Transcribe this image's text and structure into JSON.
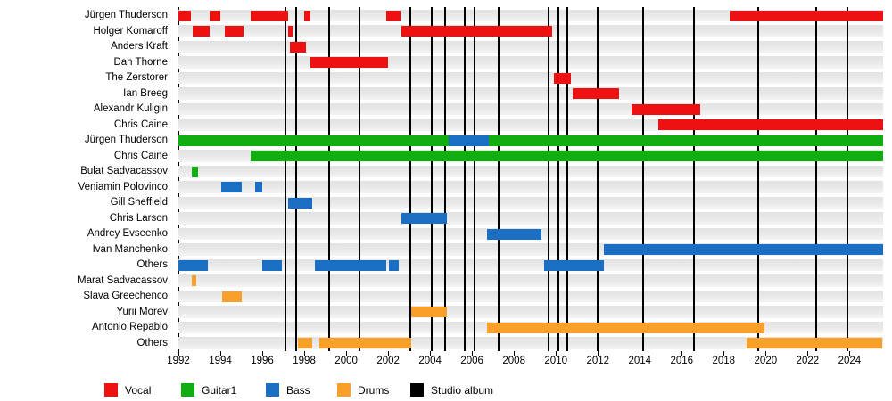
{
  "chart_data": {
    "type": "bar",
    "subtype": "band-members-timeline",
    "title": "",
    "xlabel": "",
    "ylabel": "",
    "grid": false,
    "legend_position": "bottom",
    "x_axis": {
      "min": 1992,
      "max": 2025.6,
      "tick_interval": 2,
      "ticks": [
        "1992",
        "1994",
        "1996",
        "1998",
        "2000",
        "2002",
        "2004",
        "2006",
        "2008",
        "2010",
        "2012",
        "2014",
        "2016",
        "2018",
        "2020",
        "2022",
        "2024"
      ]
    },
    "legend": [
      {
        "label": "Vocal",
        "color": "#ee1111"
      },
      {
        "label": "Guitar1",
        "color": "#11ad11"
      },
      {
        "label": "Bass",
        "color": "#1a6fc4"
      },
      {
        "label": "Drums",
        "color": "#f9a02b"
      },
      {
        "label": "Studio album",
        "color": "#000000"
      }
    ],
    "album_release_years": [
      1997.1,
      1997.6,
      1999.2,
      2000.65,
      2003.05,
      2004.1,
      2004.7,
      2005.65,
      2006.1,
      2007.25,
      2009.65,
      2010.1,
      2010.55,
      2012.0,
      2014.15,
      2016.6,
      2019.65,
      2022.4,
      2023.9
    ],
    "rows": [
      {
        "name": "Jürgen Thuderson",
        "role": "Vocal",
        "bars": [
          {
            "start": 1992.0,
            "end": 1992.6
          },
          {
            "start": 1993.5,
            "end": 1994.0
          },
          {
            "start": 1995.45,
            "end": 1997.25
          },
          {
            "start": 1998.0,
            "end": 1998.3
          },
          {
            "start": 2001.9,
            "end": 2002.6
          },
          {
            "start": 2018.3,
            "end": 2025.6
          }
        ]
      },
      {
        "name": "Holger Komaroff",
        "role": "Vocal",
        "bars": [
          {
            "start": 1992.7,
            "end": 1993.5
          },
          {
            "start": 1994.2,
            "end": 1995.1
          },
          {
            "start": 1997.25,
            "end": 1997.45
          },
          {
            "start": 2002.65,
            "end": 2009.8
          }
        ]
      },
      {
        "name": "Anders Kraft",
        "role": "Vocal",
        "bars": [
          {
            "start": 1997.3,
            "end": 1998.1
          }
        ]
      },
      {
        "name": "Dan Thorne",
        "role": "Vocal",
        "bars": [
          {
            "start": 1998.3,
            "end": 2002.0
          }
        ]
      },
      {
        "name": "The Zerstorer",
        "role": "Vocal",
        "bars": [
          {
            "start": 2009.9,
            "end": 2010.7
          }
        ]
      },
      {
        "name": "Ian Breeg",
        "role": "Vocal",
        "bars": [
          {
            "start": 2010.8,
            "end": 2013.0
          }
        ]
      },
      {
        "name": "Alexandr Kuligin",
        "role": "Vocal",
        "bars": [
          {
            "start": 2013.6,
            "end": 2016.9
          }
        ]
      },
      {
        "name": "Chris Caine",
        "role": "Vocal",
        "bars": [
          {
            "start": 2014.9,
            "end": 2025.6
          }
        ]
      },
      {
        "name": "Jürgen Thuderson",
        "role": "Guitar1",
        "bars": [
          {
            "start": 1992.0,
            "end": 2025.6
          },
          {
            "start": 2004.9,
            "end": 2006.8,
            "role": "Bass"
          }
        ]
      },
      {
        "name": "Chris Caine",
        "role": "Guitar1",
        "bars": [
          {
            "start": 1995.45,
            "end": 2025.6
          }
        ]
      },
      {
        "name": "Bulat Sadvacassov",
        "role": "Guitar1",
        "bars": [
          {
            "start": 1992.65,
            "end": 1992.95
          }
        ]
      },
      {
        "name": "Veniamin Polovinco",
        "role": "Bass",
        "bars": [
          {
            "start": 1994.05,
            "end": 1995.0
          },
          {
            "start": 1995.65,
            "end": 1996.0
          }
        ]
      },
      {
        "name": "Gill Sheffield",
        "role": "Bass",
        "bars": [
          {
            "start": 1997.25,
            "end": 1998.4
          }
        ]
      },
      {
        "name": "Chris Larson",
        "role": "Bass",
        "bars": [
          {
            "start": 2002.65,
            "end": 2004.8
          }
        ]
      },
      {
        "name": "Andrey Evseenko",
        "role": "Bass",
        "bars": [
          {
            "start": 2006.7,
            "end": 2009.3
          }
        ]
      },
      {
        "name": "Ivan Manchenko",
        "role": "Bass",
        "bars": [
          {
            "start": 2012.3,
            "end": 2025.6
          }
        ]
      },
      {
        "name": "Others",
        "role": "Bass",
        "bars": [
          {
            "start": 1992.0,
            "end": 1993.4
          },
          {
            "start": 1996.0,
            "end": 1996.95
          },
          {
            "start": 1998.5,
            "end": 2001.9
          },
          {
            "start": 2002.05,
            "end": 2002.5
          },
          {
            "start": 2009.45,
            "end": 2012.3
          }
        ]
      },
      {
        "name": "Marat Sadvacassov",
        "role": "Drums",
        "bars": [
          {
            "start": 1992.65,
            "end": 1992.85
          }
        ]
      },
      {
        "name": "Slava Greechenco",
        "role": "Drums",
        "bars": [
          {
            "start": 1994.1,
            "end": 1995.0
          }
        ]
      },
      {
        "name": "Yurii Morev",
        "role": "Drums",
        "bars": [
          {
            "start": 2003.1,
            "end": 2004.8
          }
        ]
      },
      {
        "name": "Antonio Repablo",
        "role": "Drums",
        "bars": [
          {
            "start": 2006.7,
            "end": 2019.95
          }
        ]
      },
      {
        "name": "Others",
        "role": "Drums",
        "bars": [
          {
            "start": 1997.7,
            "end": 1998.4
          },
          {
            "start": 1998.7,
            "end": 2003.1
          },
          {
            "start": 2019.1,
            "end": 2025.55
          }
        ]
      }
    ]
  }
}
